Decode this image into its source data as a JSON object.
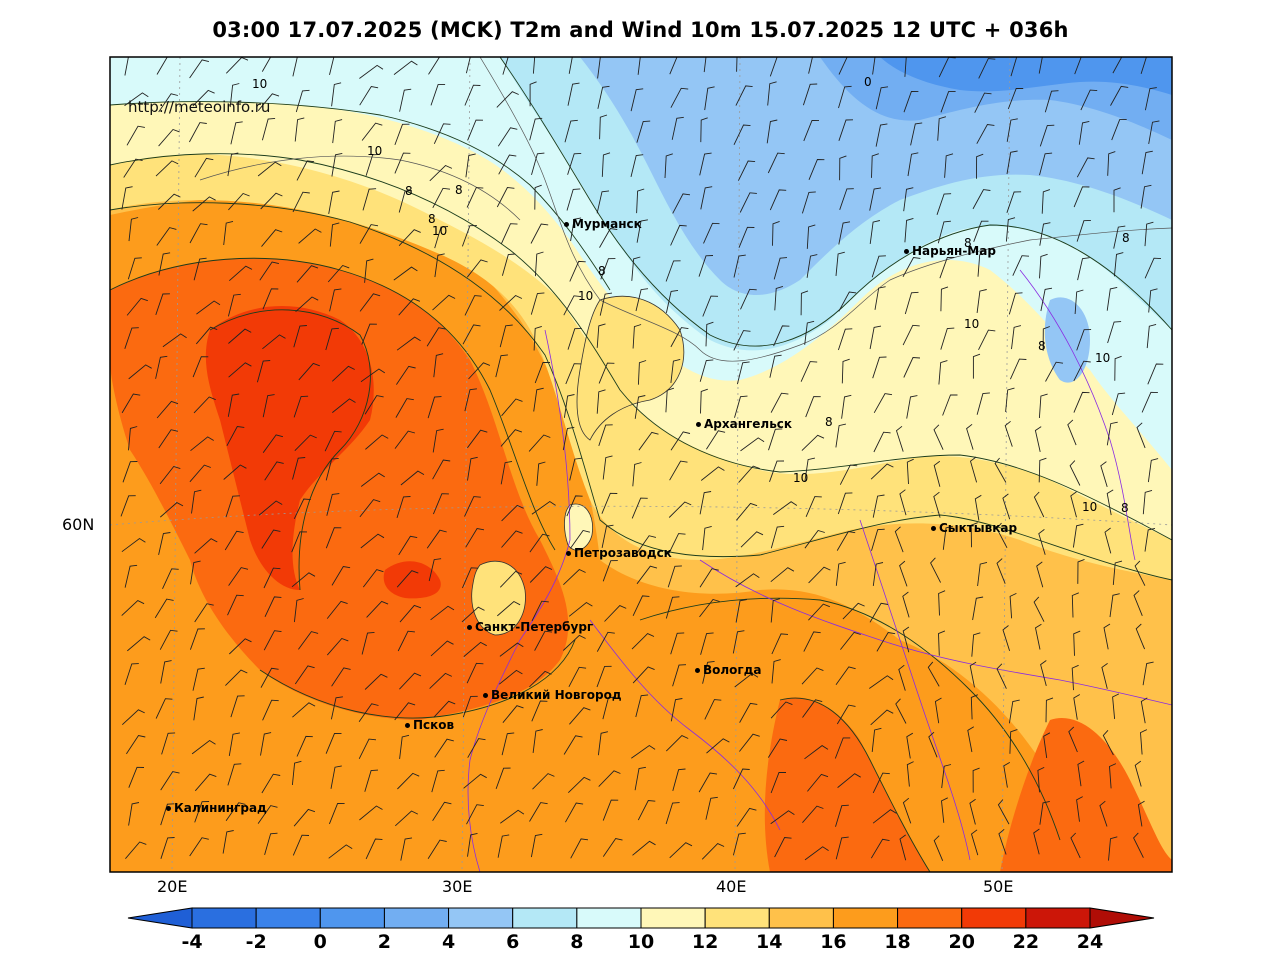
{
  "title": "03:00 17.07.2025 (MCK) T2m and Wind 10m 15.07.2025 12 UTC + 036h",
  "credit": "http://meteoinfo.ru",
  "latitude_labels": [
    "60N"
  ],
  "longitude_labels": [
    "20E",
    "30E",
    "40E",
    "50E"
  ],
  "cities": [
    {
      "name": "Мурманск"
    },
    {
      "name": "Нарьян-Мар"
    },
    {
      "name": "Архангельск"
    },
    {
      "name": "Сыктывкар"
    },
    {
      "name": "Петрозаводск"
    },
    {
      "name": "Санкт-Петербург"
    },
    {
      "name": "Вологда"
    },
    {
      "name": "Великий Новгород"
    },
    {
      "name": "Псков"
    },
    {
      "name": "Калининград"
    }
  ],
  "isoline_labels": [
    "10",
    "0",
    "10",
    "8",
    "8",
    "8",
    "10",
    "8",
    "10",
    "8",
    "10",
    "8",
    "8",
    "10",
    "8",
    "10",
    "10",
    "8"
  ],
  "colorbar": {
    "labels": [
      "-4",
      "-2",
      "0",
      "2",
      "4",
      "6",
      "8",
      "10",
      "12",
      "14",
      "16",
      "18",
      "20",
      "22",
      "24"
    ],
    "colors": [
      "#2a6fe0",
      "#3a82ea",
      "#4f96ee",
      "#72aef2",
      "#94c6f5",
      "#b4e8f6",
      "#d8fafa",
      "#fff7b8",
      "#ffe27a",
      "#ffc14a",
      "#fd9c1c",
      "#fb6a10",
      "#f23a06",
      "#cc1608"
    ],
    "under_color": "#1f5fd6",
    "over_color": "#b00d06"
  }
}
